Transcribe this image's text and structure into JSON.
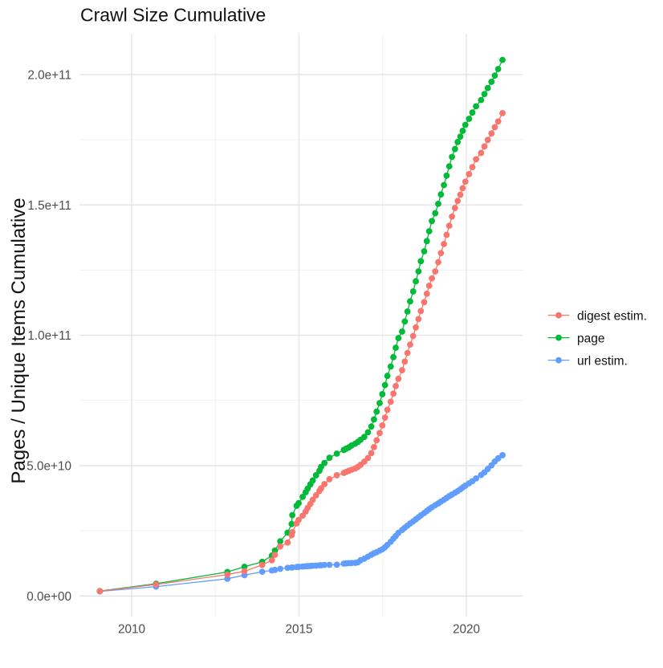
{
  "figure": {
    "title": "Crawl Size Cumulative",
    "background_color": "#FFFFFF"
  },
  "chart_data": {
    "type": "line",
    "title": "Crawl Size Cumulative",
    "xlabel": "",
    "ylabel": "Pages / Unique Items Cumulative",
    "unit": "values are cumulative counts in units of 1e9 (billions)",
    "grid": "on",
    "legend_position": "right",
    "xlim": [
      2008.45,
      2021.68
    ],
    "ylim": [
      -8.3,
      216.2
    ],
    "x_major_ticks": [
      2010,
      2015,
      2020
    ],
    "x_tick_labels": [
      "2010",
      "2015",
      "2020"
    ],
    "x_minor_ticks": [
      2012.5,
      2017.5
    ],
    "y_major_ticks": [
      0,
      50,
      100,
      150,
      200
    ],
    "y_tick_labels": [
      "0.0e+00",
      "5.0e+10",
      "1.0e+11",
      "1.5e+11",
      "2.0e+11"
    ],
    "y_minor_ticks": [
      25,
      75,
      125,
      175
    ],
    "x": [
      2009.05,
      2010.73,
      2012.86,
      2013.37,
      2013.9,
      2014.19,
      2014.28,
      2014.44,
      2014.66,
      2014.78,
      2014.8,
      2014.93,
      2014.99,
      2015.11,
      2015.2,
      2015.26,
      2015.34,
      2015.41,
      2015.51,
      2015.61,
      2015.66,
      2015.76,
      2015.91,
      2016.13,
      2016.34,
      2016.41,
      2016.49,
      2016.57,
      2016.68,
      2016.76,
      2016.84,
      2016.95,
      2017.06,
      2017.16,
      2017.24,
      2017.32,
      2017.41,
      2017.49,
      2017.57,
      2017.64,
      2017.74,
      2017.82,
      2017.89,
      2017.97,
      2018.08,
      2018.16,
      2018.24,
      2018.32,
      2018.41,
      2018.49,
      2018.57,
      2018.64,
      2018.74,
      2018.82,
      2018.89,
      2018.97,
      2019.07,
      2019.16,
      2019.24,
      2019.33,
      2019.41,
      2019.49,
      2019.57,
      2019.66,
      2019.74,
      2019.82,
      2019.89,
      2019.97,
      2020.08,
      2020.18,
      2020.29,
      2020.44,
      2020.54,
      2020.64,
      2020.75,
      2020.85,
      2020.95,
      2021.08
    ],
    "series": [
      {
        "name": "digest estim.",
        "color": "#F8766D",
        "values": [
          1.85,
          4.4,
          8.2,
          9.5,
          11.9,
          13.7,
          15.8,
          19.0,
          20.5,
          23.3,
          24.5,
          27.8,
          29.2,
          30.8,
          32.4,
          33.8,
          35.3,
          36.9,
          38.6,
          40.3,
          41.3,
          42.9,
          44.8,
          46.3,
          47.2,
          47.6,
          48.0,
          48.4,
          48.9,
          49.5,
          50.3,
          51.5,
          52.9,
          54.8,
          57.1,
          59.7,
          62.5,
          65.4,
          68.4,
          71.4,
          74.5,
          77.6,
          80.5,
          83.3,
          86.6,
          89.9,
          93.2,
          96.4,
          99.7,
          103.0,
          106.2,
          109.3,
          112.7,
          115.9,
          119.0,
          121.8,
          124.5,
          128.0,
          131.5,
          135.0,
          138.5,
          142.0,
          145.5,
          148.8,
          151.5,
          153.9,
          156.4,
          158.9,
          161.8,
          164.5,
          167.5,
          169.9,
          172.4,
          174.9,
          177.4,
          179.8,
          182.0,
          185.2
        ]
      },
      {
        "name": "page",
        "color": "#00BA38",
        "values": [
          1.9,
          4.7,
          9.2,
          11.2,
          13.1,
          15.5,
          17.4,
          21.0,
          24.3,
          27.6,
          31.0,
          34.6,
          35.6,
          38.0,
          39.8,
          41.2,
          42.8,
          44.3,
          46.3,
          48.0,
          49.5,
          51.0,
          53.0,
          54.6,
          56.0,
          56.5,
          57.0,
          57.7,
          58.4,
          59.1,
          59.9,
          61.0,
          62.8,
          65.0,
          67.7,
          70.7,
          74.0,
          77.4,
          80.9,
          84.4,
          88.0,
          91.6,
          95.2,
          98.9,
          101.4,
          105.3,
          109.1,
          113.0,
          116.8,
          120.7,
          124.5,
          128.4,
          132.2,
          136.1,
          139.9,
          143.8,
          146.8,
          150.4,
          154.0,
          157.6,
          161.2,
          164.8,
          168.4,
          171.4,
          174.1,
          176.2,
          178.4,
          180.7,
          183.0,
          185.4,
          187.8,
          190.2,
          192.5,
          194.8,
          197.2,
          199.6,
          202.1,
          205.6
        ]
      },
      {
        "name": "url estim.",
        "color": "#619CFF",
        "values": [
          1.75,
          3.6,
          6.6,
          8.0,
          9.3,
          9.8,
          10.0,
          10.4,
          10.8,
          10.9,
          10.95,
          11.1,
          11.2,
          11.3,
          11.4,
          11.45,
          11.5,
          11.6,
          11.65,
          11.75,
          11.8,
          11.9,
          11.95,
          12.0,
          12.4,
          12.5,
          12.6,
          12.65,
          12.7,
          12.9,
          13.7,
          14.3,
          15.1,
          15.8,
          16.4,
          16.8,
          17.4,
          17.9,
          18.7,
          19.6,
          20.8,
          22.0,
          23.0,
          24.2,
          25.3,
          26.2,
          27.0,
          27.8,
          28.6,
          29.4,
          30.2,
          30.9,
          31.8,
          32.6,
          33.3,
          34.0,
          34.8,
          35.5,
          36.2,
          36.9,
          37.6,
          38.3,
          38.9,
          39.6,
          40.2,
          40.9,
          41.6,
          42.3,
          43.2,
          44.0,
          45.1,
          46.4,
          47.4,
          48.7,
          50.1,
          51.6,
          52.8,
          54.0
        ]
      }
    ],
    "legend": [
      {
        "label": "digest estim.",
        "color": "#F8766D"
      },
      {
        "label": "page",
        "color": "#00BA38"
      },
      {
        "label": "url estim.",
        "color": "#619CFF"
      }
    ],
    "style": {
      "grid_major_color": "#E3E3E3",
      "grid_minor_color": "#EEEEEE",
      "axis_text_color": "#4D4D4D",
      "text_color": "#111111",
      "point_radius": 3.9,
      "line_width": 1.3
    }
  }
}
